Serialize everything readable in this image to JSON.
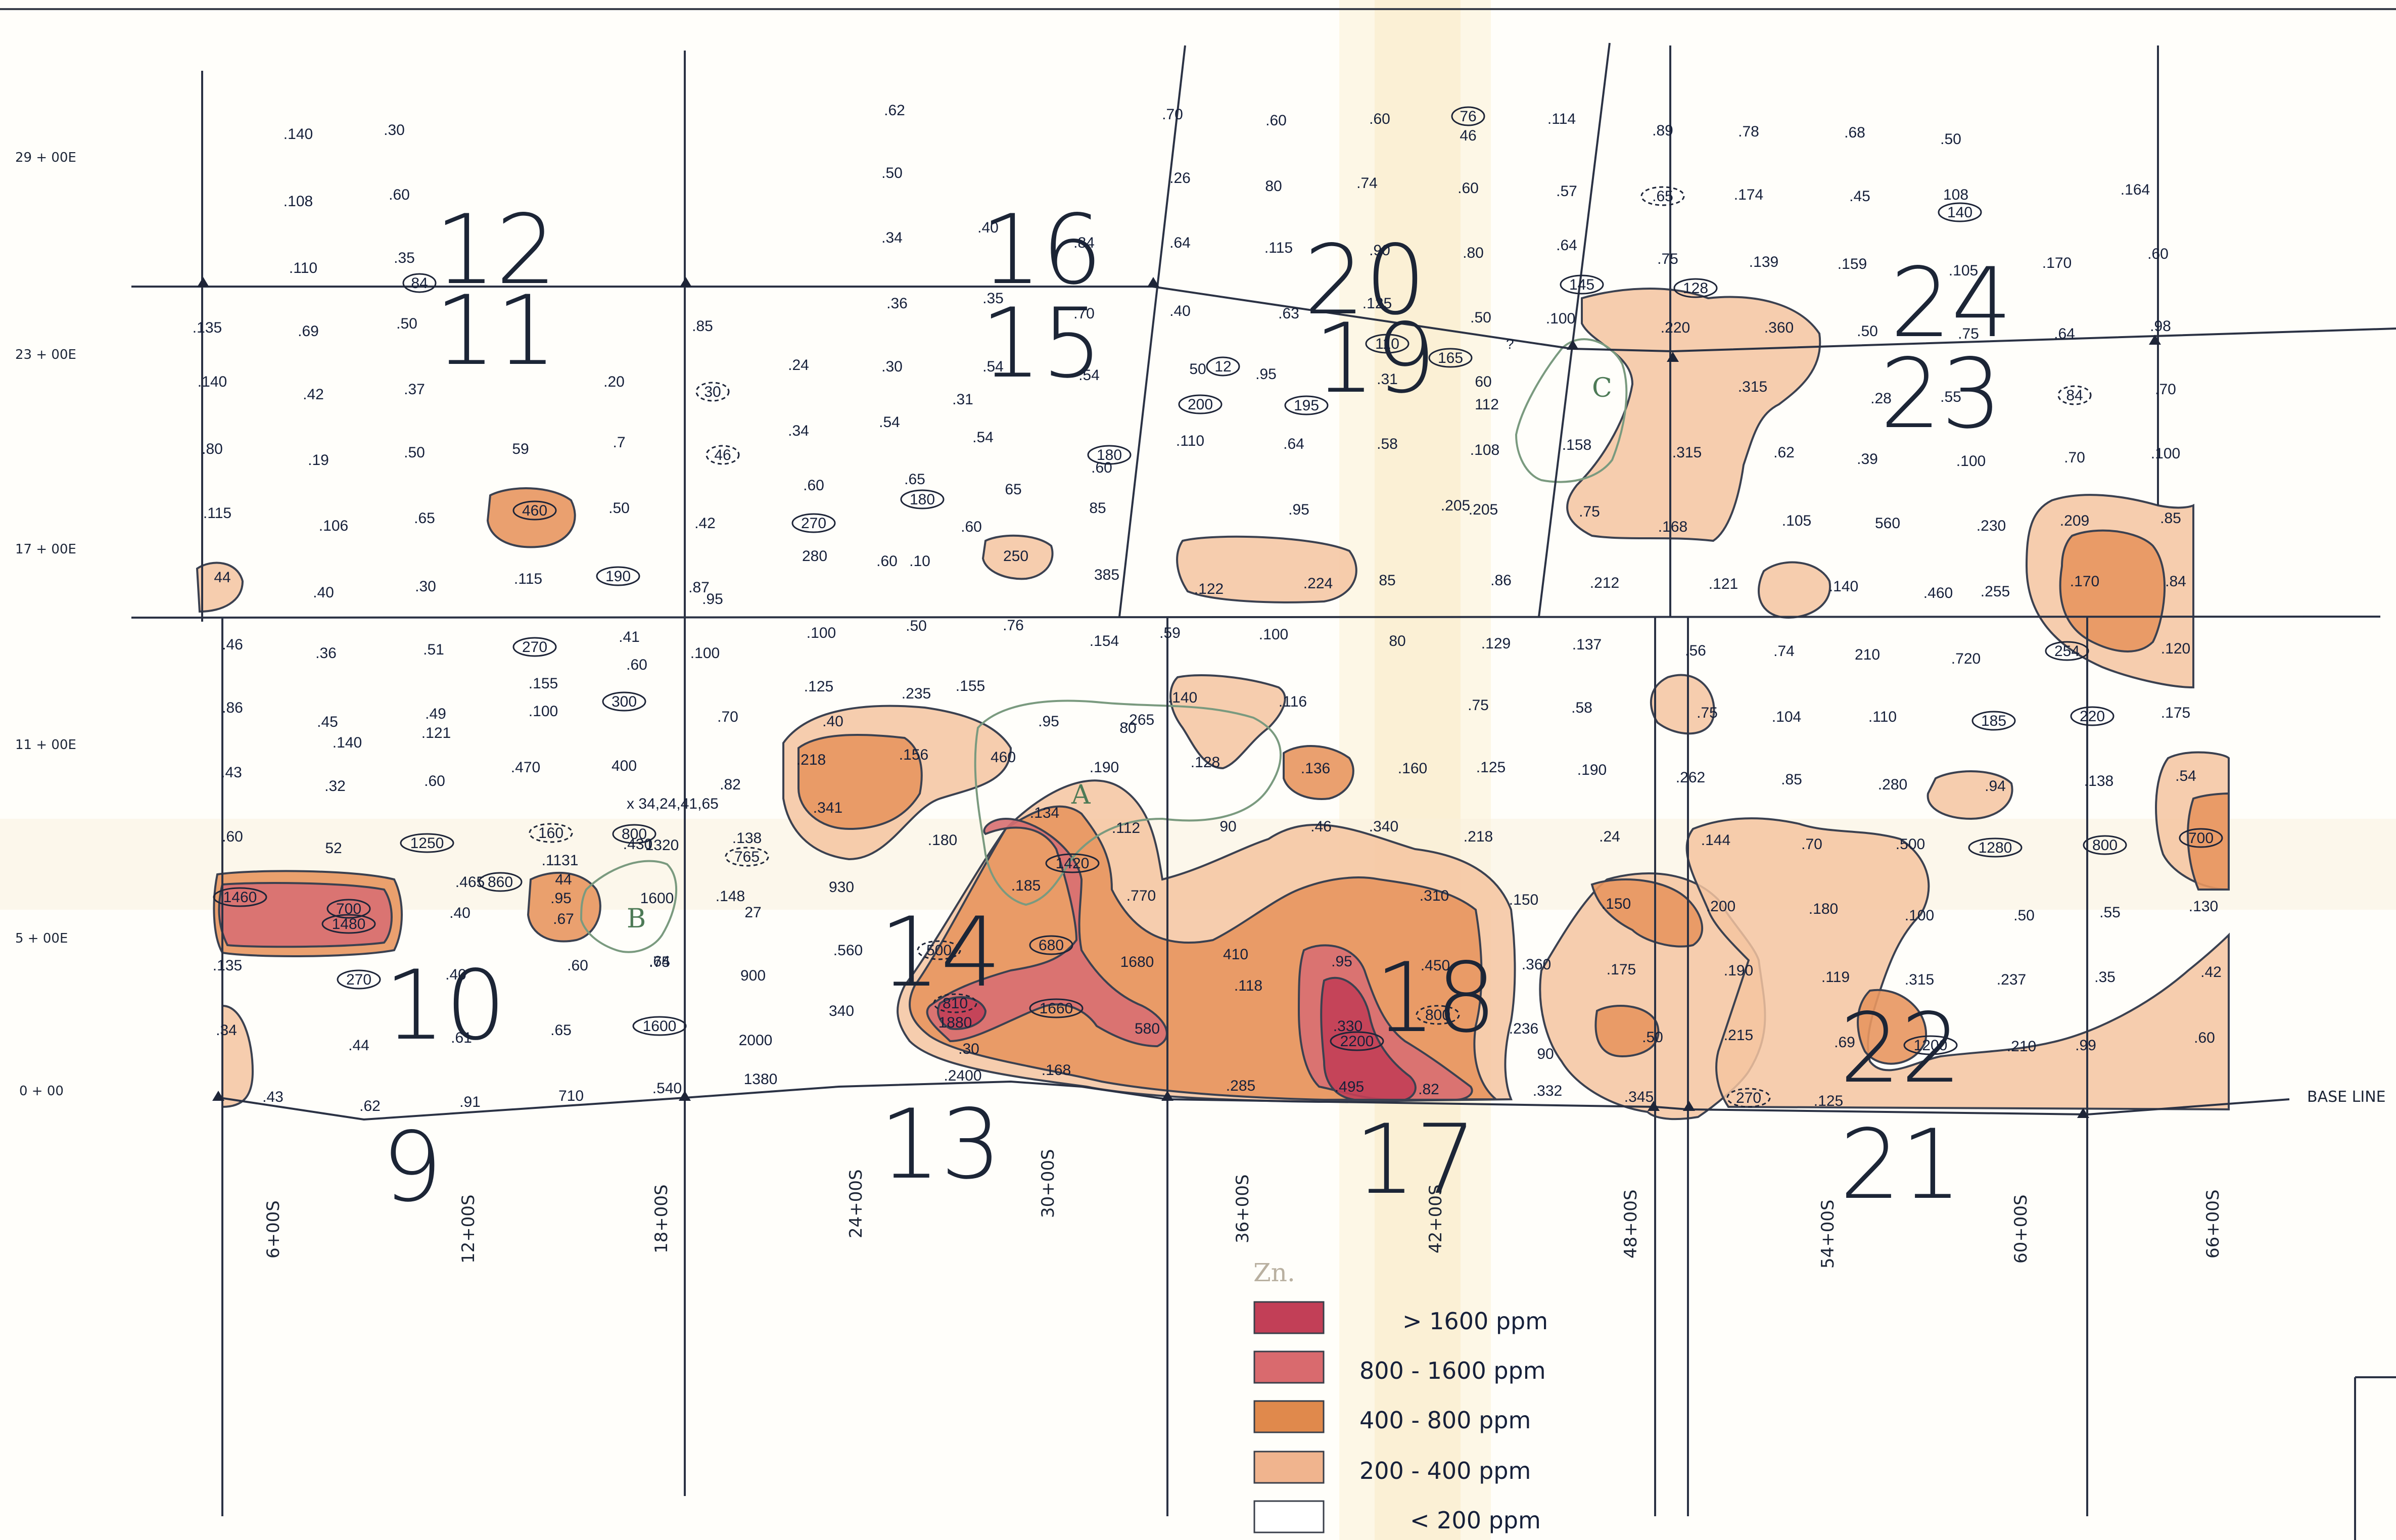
{
  "northings": [
    "29 + 00E",
    "23 + 00E",
    "17 + 00E",
    "11 + 00E",
    "5 + 00E",
    "0 + 00"
  ],
  "eastings": [
    "6+00S",
    "12+00S",
    "18+00S",
    "24+00S",
    "30+00S",
    "36+00S",
    "42+00S",
    "48+00S",
    "54+00S",
    "60+00S",
    "66+00S"
  ],
  "baseline_label": "BASE LINE",
  "claims": [
    "9",
    "10",
    "11",
    "12",
    "13",
    "14",
    "15",
    "16",
    "17",
    "18",
    "19",
    "20",
    "21",
    "22",
    "23",
    "24"
  ],
  "annotations": {
    "zn": "Zn.",
    "coords": "x 34,24,41,65",
    "q": "?"
  },
  "anomalies": [
    "A",
    "B",
    "C"
  ],
  "legend": {
    "items": [
      {
        "label": "> 1600 ppm",
        "color": "#c23f57"
      },
      {
        "label": "800 - 1600 ppm",
        "color": "#d96a6e"
      },
      {
        "label": "400 - 800 ppm",
        "color": "#e0894c"
      },
      {
        "label": "200 - 400 ppm",
        "color": "#f0b48e"
      },
      {
        "label": "< 200 ppm",
        "color": "#ffffff"
      }
    ]
  },
  "samples": [
    {
      "v": ".140",
      "c": 0
    },
    {
      "v": ".30",
      "c": 0
    },
    {
      "v": ".62",
      "c": 0
    },
    {
      "v": ".70",
      "c": 0
    },
    {
      "v": ".60",
      "c": 0
    },
    {
      "v": ".60",
      "c": 0
    },
    {
      "v": "76",
      "c": 1
    },
    {
      "v": "46",
      "c": 0
    },
    {
      "v": ".114",
      "c": 0
    },
    {
      "v": ".89",
      "c": 0
    },
    {
      "v": ".78",
      "c": 0
    },
    {
      "v": ".68",
      "c": 0
    },
    {
      "v": ".50",
      "c": 0
    },
    {
      "v": ".108",
      "c": 0
    },
    {
      "v": ".60",
      "c": 0
    },
    {
      "v": ".50",
      "c": 0
    },
    {
      "v": ".26",
      "c": 0
    },
    {
      "v": "80",
      "c": 0
    },
    {
      "v": ".74",
      "c": 0
    },
    {
      "v": ".60",
      "c": 0
    },
    {
      "v": ".57",
      "c": 0
    },
    {
      "v": ".65",
      "c": 2
    },
    {
      "v": ".174",
      "c": 0
    },
    {
      "v": ".45",
      "c": 0
    },
    {
      "v": "108",
      "c": 0
    },
    {
      "v": "140",
      "c": 1
    },
    {
      "v": ".164",
      "c": 0
    },
    {
      "v": ".110",
      "c": 0
    },
    {
      "v": ".35",
      "c": 0
    },
    {
      "v": "84",
      "c": 1
    },
    {
      "v": ".34",
      "c": 0
    },
    {
      "v": ".40",
      "c": 0
    },
    {
      "v": ".84",
      "c": 0
    },
    {
      "v": ".64",
      "c": 0
    },
    {
      "v": ".115",
      "c": 0
    },
    {
      "v": ".90",
      "c": 0
    },
    {
      "v": ".80",
      "c": 0
    },
    {
      "v": ".64",
      "c": 0
    },
    {
      "v": "145",
      "c": 1
    },
    {
      "v": ".75",
      "c": 0
    },
    {
      "v": "128",
      "c": 1
    },
    {
      "v": ".139",
      "c": 0
    },
    {
      "v": ".159",
      "c": 0
    },
    {
      "v": ".105",
      "c": 0
    },
    {
      "v": ".170",
      "c": 0
    },
    {
      "v": ".60",
      "c": 0
    },
    {
      "v": ".135",
      "c": 0
    },
    {
      "v": ".69",
      "c": 0
    },
    {
      "v": ".50",
      "c": 0
    },
    {
      "v": ".85",
      "c": 0
    },
    {
      "v": ".36",
      "c": 0
    },
    {
      "v": ".35",
      "c": 0
    },
    {
      "v": ".70",
      "c": 0
    },
    {
      "v": ".40",
      "c": 0
    },
    {
      "v": ".63",
      "c": 0
    },
    {
      "v": ".125",
      "c": 0
    },
    {
      "v": "110",
      "c": 1
    },
    {
      "v": ".50",
      "c": 0
    },
    {
      "v": ".100",
      "c": 0
    },
    {
      "v": ".220",
      "c": 0
    },
    {
      "v": ".360",
      "c": 0
    },
    {
      "v": ".50",
      "c": 0
    },
    {
      "v": ".75",
      "c": 0
    },
    {
      "v": ".64",
      "c": 0
    },
    {
      "v": ".98",
      "c": 0
    },
    {
      "v": ".140",
      "c": 0
    },
    {
      "v": ".42",
      "c": 0
    },
    {
      "v": ".37",
      "c": 0
    },
    {
      "v": ".20",
      "c": 0
    },
    {
      "v": "30",
      "c": 2
    },
    {
      "v": ".24",
      "c": 0
    },
    {
      "v": ".30",
      "c": 0
    },
    {
      "v": ".54",
      "c": 0
    },
    {
      "v": ".54",
      "c": 0
    },
    {
      "v": "50",
      "c": 0
    },
    {
      "v": "12",
      "c": 1
    },
    {
      "v": ".95",
      "c": 0
    },
    {
      "v": ".31",
      "c": 0
    },
    {
      "v": "165",
      "c": 1
    },
    {
      "v": "60",
      "c": 0
    },
    {
      "v": ".315",
      "c": 0
    },
    {
      "v": ".28",
      "c": 0
    },
    {
      "v": ".55",
      "c": 0
    },
    {
      "v": "84",
      "c": 2
    },
    {
      "v": ".70",
      "c": 0
    },
    {
      "v": "200",
      "c": 1
    },
    {
      "v": "195",
      "c": 1
    },
    {
      "v": "112",
      "c": 0
    },
    {
      "v": ".31",
      "c": 0
    },
    {
      "v": ".80",
      "c": 0
    },
    {
      "v": ".19",
      "c": 0
    },
    {
      "v": ".50",
      "c": 0
    },
    {
      "v": "59",
      "c": 0
    },
    {
      "v": ".7",
      "c": 0
    },
    {
      "v": "46",
      "c": 2
    },
    {
      "v": ".34",
      "c": 0
    },
    {
      "v": ".54",
      "c": 0
    },
    {
      "v": ".54",
      "c": 0
    },
    {
      "v": "180",
      "c": 1
    },
    {
      "v": ".110",
      "c": 0
    },
    {
      "v": ".64",
      "c": 0
    },
    {
      "v": ".58",
      "c": 0
    },
    {
      "v": ".108",
      "c": 0
    },
    {
      "v": ".158",
      "c": 0
    },
    {
      "v": ".315",
      "c": 0
    },
    {
      "v": ".62",
      "c": 0
    },
    {
      "v": ".39",
      "c": 0
    },
    {
      "v": ".100",
      "c": 0
    },
    {
      "v": ".70",
      "c": 0
    },
    {
      "v": ".100",
      "c": 0
    },
    {
      "v": ".60",
      "c": 0
    },
    {
      "v": ".65",
      "c": 0
    },
    {
      "v": "180",
      "c": 1
    },
    {
      "v": "65",
      "c": 0
    },
    {
      "v": ".60",
      "c": 0
    },
    {
      "v": ".115",
      "c": 0
    },
    {
      "v": ".106",
      "c": 0
    },
    {
      "v": ".65",
      "c": 0
    },
    {
      "v": "460",
      "c": 1
    },
    {
      "v": ".50",
      "c": 0
    },
    {
      "v": ".42",
      "c": 0
    },
    {
      "v": "270",
      "c": 1
    },
    {
      "v": ".60",
      "c": 0
    },
    {
      "v": ".60",
      "c": 0
    },
    {
      "v": "85",
      "c": 0
    },
    {
      "v": ".95",
      "c": 0
    },
    {
      "v": ".205",
      "c": 0
    },
    {
      "v": ".205",
      "c": 0
    },
    {
      "v": ".75",
      "c": 0
    },
    {
      "v": ".168",
      "c": 0
    },
    {
      "v": ".105",
      "c": 0
    },
    {
      "v": "560",
      "c": 0
    },
    {
      "v": ".230",
      "c": 0
    },
    {
      "v": ".209",
      "c": 0
    },
    {
      "v": ".85",
      "c": 0
    },
    {
      "v": "44",
      "c": 0
    },
    {
      "v": ".40",
      "c": 0
    },
    {
      "v": ".30",
      "c": 0
    },
    {
      "v": ".115",
      "c": 0
    },
    {
      "v": "190",
      "c": 1
    },
    {
      "v": ".87",
      "c": 0
    },
    {
      "v": ".95",
      "c": 0
    },
    {
      "v": "280",
      "c": 0
    },
    {
      "v": ".10",
      "c": 0
    },
    {
      "v": "250",
      "c": 0
    },
    {
      "v": "385",
      "c": 0
    },
    {
      "v": ".122",
      "c": 0
    },
    {
      "v": ".224",
      "c": 0
    },
    {
      "v": "85",
      "c": 0
    },
    {
      "v": ".86",
      "c": 0
    },
    {
      "v": ".212",
      "c": 0
    },
    {
      "v": ".121",
      "c": 0
    },
    {
      "v": ".140",
      "c": 0
    },
    {
      "v": ".460",
      "c": 0
    },
    {
      "v": ".255",
      "c": 0
    },
    {
      "v": ".170",
      "c": 0
    },
    {
      "v": ".84",
      "c": 0
    },
    {
      "v": ".46",
      "c": 0
    },
    {
      "v": ".36",
      "c": 0
    },
    {
      "v": ".51",
      "c": 0
    },
    {
      "v": "270",
      "c": 1
    },
    {
      "v": ".41",
      "c": 0
    },
    {
      "v": ".60",
      "c": 0
    },
    {
      "v": ".100",
      "c": 0
    },
    {
      "v": ".100",
      "c": 0
    },
    {
      "v": ".50",
      "c": 0
    },
    {
      "v": ".76",
      "c": 0
    },
    {
      "v": ".154",
      "c": 0
    },
    {
      "v": ".59",
      "c": 0
    },
    {
      "v": ".100",
      "c": 0
    },
    {
      "v": "80",
      "c": 0
    },
    {
      "v": ".129",
      "c": 0
    },
    {
      "v": ".137",
      "c": 0
    },
    {
      "v": ".56",
      "c": 0
    },
    {
      "v": ".74",
      "c": 0
    },
    {
      "v": "210",
      "c": 0
    },
    {
      "v": ".720",
      "c": 0
    },
    {
      "v": "254",
      "c": 1
    },
    {
      "v": ".120",
      "c": 0
    },
    {
      "v": ".155",
      "c": 0
    },
    {
      "v": ".125",
      "c": 0
    },
    {
      "v": ".235",
      "c": 0
    },
    {
      "v": ".155",
      "c": 0
    },
    {
      "v": ".140",
      "c": 0
    },
    {
      "v": ".116",
      "c": 0
    },
    {
      "v": ".86",
      "c": 0
    },
    {
      "v": ".45",
      "c": 0
    },
    {
      "v": ".49",
      "c": 0
    },
    {
      "v": ".100",
      "c": 0
    },
    {
      "v": "300",
      "c": 1
    },
    {
      "v": ".70",
      "c": 0
    },
    {
      "v": ".40",
      "c": 0
    },
    {
      "v": ".95",
      "c": 0
    },
    {
      "v": ".265",
      "c": 0
    },
    {
      "v": ".75",
      "c": 0
    },
    {
      "v": ".58",
      "c": 0
    },
    {
      "v": ".75",
      "c": 0
    },
    {
      "v": ".104",
      "c": 0
    },
    {
      "v": ".110",
      "c": 0
    },
    {
      "v": "185",
      "c": 1
    },
    {
      "v": "220",
      "c": 1
    },
    {
      "v": ".175",
      "c": 0
    },
    {
      "v": ".140",
      "c": 0
    },
    {
      "v": ".121",
      "c": 0
    },
    {
      "v": "80",
      "c": 0
    },
    {
      "v": ".43",
      "c": 0
    },
    {
      "v": ".32",
      "c": 0
    },
    {
      "v": ".60",
      "c": 0
    },
    {
      "v": ".470",
      "c": 0
    },
    {
      "v": "400",
      "c": 0
    },
    {
      "v": ".82",
      "c": 0
    },
    {
      "v": ".218",
      "c": 0
    },
    {
      "v": ".156",
      "c": 0
    },
    {
      "v": "460",
      "c": 0
    },
    {
      "v": ".190",
      "c": 0
    },
    {
      "v": ".128",
      "c": 0
    },
    {
      "v": ".136",
      "c": 0
    },
    {
      "v": ".160",
      "c": 0
    },
    {
      "v": ".125",
      "c": 0
    },
    {
      "v": ".190",
      "c": 0
    },
    {
      "v": ".262",
      "c": 0
    },
    {
      "v": ".85",
      "c": 0
    },
    {
      "v": ".280",
      "c": 0
    },
    {
      "v": ".94",
      "c": 0
    },
    {
      "v": ".138",
      "c": 0
    },
    {
      "v": ".54",
      "c": 0
    },
    {
      "v": ".60",
      "c": 0
    },
    {
      "v": "52",
      "c": 0
    },
    {
      "v": "1250",
      "c": 1
    },
    {
      "v": "160",
      "c": 2
    },
    {
      "v": "800",
      "c": 1
    },
    {
      "v": ".430",
      "c": 0
    },
    {
      "v": ".138",
      "c": 0
    },
    {
      "v": "765",
      "c": 2
    },
    {
      "v": ".341",
      "c": 0
    },
    {
      "v": ".180",
      "c": 0
    },
    {
      "v": ".134",
      "c": 0
    },
    {
      "v": ".112",
      "c": 0
    },
    {
      "v": "90",
      "c": 0
    },
    {
      "v": ".46",
      "c": 0
    },
    {
      "v": ".340",
      "c": 0
    },
    {
      "v": ".218",
      "c": 0
    },
    {
      "v": ".24",
      "c": 0
    },
    {
      "v": ".144",
      "c": 0
    },
    {
      "v": ".70",
      "c": 0
    },
    {
      "v": ".500",
      "c": 0
    },
    {
      "v": "1280",
      "c": 1
    },
    {
      "v": "800",
      "c": 1
    },
    {
      "v": "700",
      "c": 1
    },
    {
      "v": ".1131",
      "c": 0
    },
    {
      "v": "1320",
      "c": 0
    },
    {
      "v": "1420",
      "c": 1
    },
    {
      "v": "1460",
      "c": 1
    },
    {
      "v": "700",
      "c": 1
    },
    {
      "v": "1480",
      "c": 1
    },
    {
      "v": ".465",
      "c": 0
    },
    {
      "v": "860",
      "c": 1
    },
    {
      "v": "44",
      "c": 0
    },
    {
      "v": ".95",
      "c": 0
    },
    {
      "v": ".67",
      "c": 0
    },
    {
      "v": "1600",
      "c": 0
    },
    {
      "v": ".148",
      "c": 0
    },
    {
      "v": "930",
      "c": 0
    },
    {
      "v": ".185",
      "c": 0
    },
    {
      "v": ".770",
      "c": 0
    },
    {
      "v": ".310",
      "c": 0
    },
    {
      "v": ".150",
      "c": 0
    },
    {
      "v": ".150",
      "c": 0
    },
    {
      "v": ".200",
      "c": 0
    },
    {
      "v": ".180",
      "c": 0
    },
    {
      "v": ".100",
      "c": 0
    },
    {
      "v": ".50",
      "c": 0
    },
    {
      "v": ".55",
      "c": 0
    },
    {
      "v": ".130",
      "c": 0
    },
    {
      "v": ".40",
      "c": 0
    },
    {
      "v": "27",
      "c": 0
    },
    {
      "v": ".135",
      "c": 0
    },
    {
      "v": "270",
      "c": 1
    },
    {
      "v": ".40",
      "c": 0
    },
    {
      "v": ".60",
      "c": 0
    },
    {
      "v": ".64",
      "c": 0
    },
    {
      "v": ".75",
      "c": 0
    },
    {
      "v": "900",
      "c": 0
    },
    {
      "v": ".560",
      "c": 0
    },
    {
      "v": "500",
      "c": 2
    },
    {
      "v": "680",
      "c": 1
    },
    {
      "v": "1680",
      "c": 0
    },
    {
      "v": "410",
      "c": 0
    },
    {
      "v": ".118",
      "c": 0
    },
    {
      "v": ".95",
      "c": 0
    },
    {
      "v": ".450",
      "c": 0
    },
    {
      "v": ".360",
      "c": 0
    },
    {
      "v": ".175",
      "c": 0
    },
    {
      "v": ".190",
      "c": 0
    },
    {
      "v": ".119",
      "c": 0
    },
    {
      "v": ".315",
      "c": 0
    },
    {
      "v": ".237",
      "c": 0
    },
    {
      "v": ".35",
      "c": 0
    },
    {
      "v": ".42",
      "c": 0
    },
    {
      "v": ".34",
      "c": 0
    },
    {
      "v": ".44",
      "c": 0
    },
    {
      "v": ".61",
      "c": 0
    },
    {
      "v": ".65",
      "c": 0
    },
    {
      "v": "1600",
      "c": 1
    },
    {
      "v": "2000",
      "c": 0
    },
    {
      "v": "340",
      "c": 0
    },
    {
      "v": "810",
      "c": 2
    },
    {
      "v": "1880",
      "c": 0
    },
    {
      "v": "1660",
      "c": 1
    },
    {
      "v": "580",
      "c": 0
    },
    {
      "v": ".330",
      "c": 0
    },
    {
      "v": "2200",
      "c": 1
    },
    {
      "v": "800",
      "c": 2
    },
    {
      "v": ".236",
      "c": 0
    },
    {
      "v": "90",
      "c": 0
    },
    {
      "v": ".50",
      "c": 0
    },
    {
      "v": ".215",
      "c": 0
    },
    {
      "v": ".69",
      "c": 0
    },
    {
      "v": "1200",
      "c": 1
    },
    {
      "v": ".210",
      "c": 0
    },
    {
      "v": ".99",
      "c": 0
    },
    {
      "v": ".60",
      "c": 0
    },
    {
      "v": ".30",
      "c": 0
    },
    {
      "v": ".43",
      "c": 0
    },
    {
      "v": ".62",
      "c": 0
    },
    {
      "v": ".91",
      "c": 0
    },
    {
      "v": "710",
      "c": 0
    },
    {
      "v": ".540",
      "c": 0
    },
    {
      "v": "1380",
      "c": 0
    },
    {
      "v": ".2400",
      "c": 0
    },
    {
      "v": ".168",
      "c": 0
    },
    {
      "v": ".285",
      "c": 0
    },
    {
      "v": ".495",
      "c": 0
    },
    {
      "v": ".82",
      "c": 0
    },
    {
      "v": ".332",
      "c": 0
    },
    {
      "v": ".345",
      "c": 0
    },
    {
      "v": "270",
      "c": 2
    },
    {
      "v": ".125",
      "c": 0
    }
  ]
}
